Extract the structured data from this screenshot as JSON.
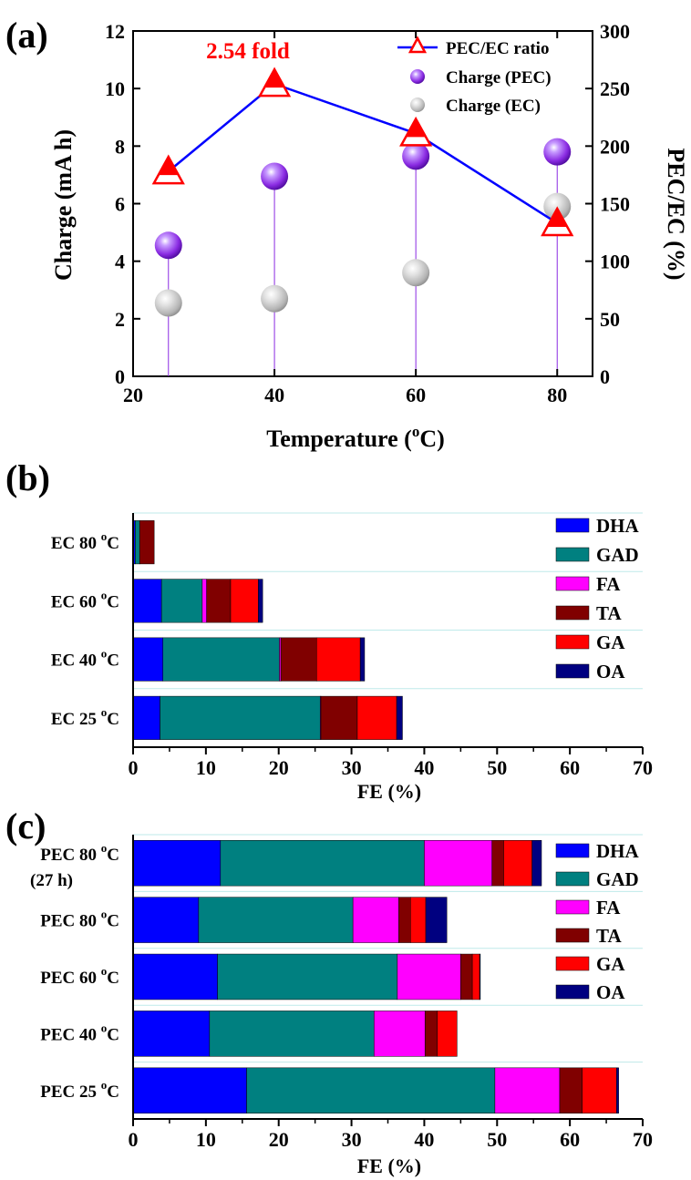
{
  "colors": {
    "DHA": "#0000ff",
    "GAD": "#008080",
    "FA": "#ff00ff",
    "TA": "#800000",
    "GA": "#ff0000",
    "OA": "#000080",
    "ratio_line": "#0000ff",
    "ratio_marker": "#ff0000",
    "pec_sphere": "#8a2be2",
    "ec_sphere": "#c0c0c0",
    "stem": "#8a2be2",
    "annotation": "#ff0000"
  },
  "chart_data": [
    {
      "panel_label": "(a)",
      "type": "scatter",
      "xlabel": "Temperature (",
      "xlabel_sup": "o",
      "xlabel_end": "C)",
      "ylabel": "Charge (mA h)",
      "y2label": "PEC/EC (%)",
      "xlim": [
        20,
        85
      ],
      "ylim": [
        0,
        12
      ],
      "y2lim": [
        0,
        300
      ],
      "x_ticks": [
        "20",
        "40",
        "60",
        "80"
      ],
      "y_ticks": [
        "0",
        "2",
        "4",
        "6",
        "8",
        "10",
        "12"
      ],
      "y2_ticks": [
        "0",
        "50",
        "100",
        "150",
        "200",
        "250",
        "300"
      ],
      "x": [
        25,
        40,
        60,
        80
      ],
      "series": [
        {
          "name": "PEC/EC ratio",
          "axis": "right",
          "kind": "line-triangle",
          "values": [
            178,
            254,
            211,
            133
          ]
        },
        {
          "name": "Charge (PEC)",
          "axis": "left",
          "kind": "sphere",
          "values": [
            4.55,
            6.95,
            7.65,
            7.8
          ]
        },
        {
          "name": "Charge (EC)",
          "axis": "left",
          "kind": "sphere",
          "values": [
            2.55,
            2.7,
            3.6,
            5.9
          ]
        }
      ],
      "annotation": "2.54 fold",
      "legend_position": "top-right"
    },
    {
      "panel_label": "(b)",
      "type": "bar",
      "orientation": "horizontal-stacked",
      "xlabel": "FE (%)",
      "xlim": [
        0,
        70
      ],
      "x_ticks": [
        "0",
        "10",
        "20",
        "30",
        "40",
        "50",
        "60",
        "70"
      ],
      "categories": [
        {
          "pre": "EC 80 ",
          "post": "C"
        },
        {
          "pre": "EC 60 ",
          "post": "C"
        },
        {
          "pre": "EC 40 ",
          "post": "C"
        },
        {
          "pre": "EC 25 ",
          "post": "C"
        }
      ],
      "deg": "o",
      "series": [
        {
          "name": "DHA",
          "values": [
            0.3,
            3.9,
            4.1,
            3.7
          ]
        },
        {
          "name": "GAD",
          "values": [
            0.6,
            5.6,
            16.0,
            22.0
          ]
        },
        {
          "name": "FA",
          "values": [
            0.0,
            0.6,
            0.2,
            0.1
          ]
        },
        {
          "name": "TA",
          "values": [
            2.0,
            3.3,
            4.9,
            5.0
          ]
        },
        {
          "name": "GA",
          "values": [
            0.0,
            3.8,
            6.0,
            5.4
          ]
        },
        {
          "name": "OA",
          "values": [
            0.0,
            0.6,
            0.6,
            0.8
          ]
        }
      ],
      "legend_position": "right"
    },
    {
      "panel_label": "(c)",
      "type": "bar",
      "orientation": "horizontal-stacked",
      "xlabel": "FE (%)",
      "xlim": [
        0,
        70
      ],
      "x_ticks": [
        "0",
        "10",
        "20",
        "30",
        "40",
        "50",
        "60",
        "70"
      ],
      "categories": [
        {
          "pre": "PEC 80 ",
          "post": "C",
          "line2": "(27 h)"
        },
        {
          "pre": "PEC 80 ",
          "post": "C"
        },
        {
          "pre": "PEC 60 ",
          "post": "C"
        },
        {
          "pre": "PEC 40 ",
          "post": "C"
        },
        {
          "pre": "PEC 25 ",
          "post": "C"
        }
      ],
      "deg": "o",
      "series": [
        {
          "name": "DHA",
          "values": [
            12.0,
            9.0,
            11.6,
            10.5,
            15.6
          ]
        },
        {
          "name": "GAD",
          "values": [
            28.0,
            21.2,
            24.7,
            22.6,
            34.1
          ]
        },
        {
          "name": "FA",
          "values": [
            9.3,
            6.3,
            8.7,
            7.0,
            8.9
          ]
        },
        {
          "name": "TA",
          "values": [
            1.6,
            1.6,
            1.6,
            1.7,
            3.1
          ]
        },
        {
          "name": "GA",
          "values": [
            3.9,
            2.1,
            1.0,
            2.7,
            4.7
          ]
        },
        {
          "name": "OA",
          "values": [
            1.3,
            2.9,
            0.1,
            0.0,
            0.3
          ]
        }
      ],
      "legend_position": "right"
    }
  ]
}
